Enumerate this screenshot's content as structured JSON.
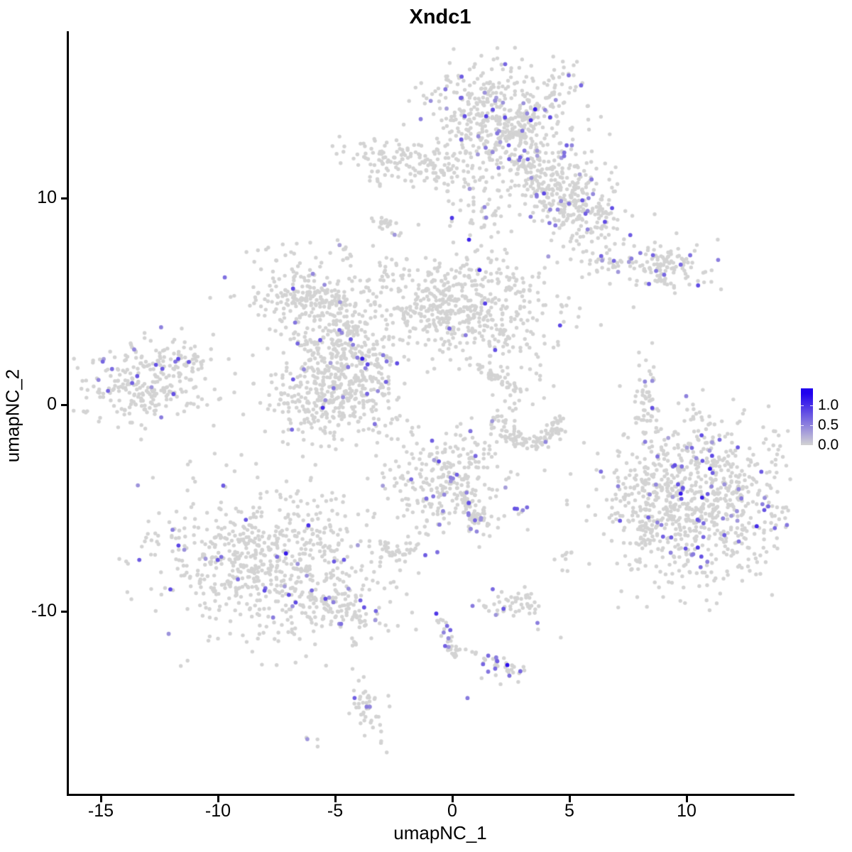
{
  "chart_data": {
    "type": "scatter",
    "title": "Xndc1",
    "xlabel": "umapNC_1",
    "ylabel": "umapNC_2",
    "x_ticks": [
      -15,
      -10,
      -5,
      0,
      5,
      10
    ],
    "y_ticks": [
      -10,
      0,
      10
    ],
    "xlim": [
      -16.4,
      14.5
    ],
    "ylim": [
      -18.9,
      18.0
    ],
    "grid": false,
    "point_base_color": "#d3d3d3",
    "expression_high_color": "#2000ee",
    "expression_vmax": 1.3,
    "seed": 12,
    "legend": {
      "position": "right",
      "tick_labels": [
        "1.0",
        "0.5",
        "0.0"
      ],
      "tick_values": [
        1.0,
        0.5,
        0.0
      ],
      "bar_value_top": 1.43,
      "low_color": "#d3d3d3",
      "high_color": "#2000ee"
    },
    "clusters": [
      {
        "name": "top-main",
        "type": "blob",
        "cx": 2.15,
        "cy": 14.2,
        "sx": 1.6,
        "sy": 1.3,
        "rot": 0,
        "n": 430,
        "frac": 0.075
      },
      {
        "name": "top-band",
        "type": "blob",
        "cx": 3.8,
        "cy": 11.4,
        "sx": 1.9,
        "sy": 0.85,
        "rot": -40,
        "n": 300,
        "frac": 0.075
      },
      {
        "name": "top-lower-lobe",
        "type": "blob",
        "cx": 5.2,
        "cy": 9.45,
        "sx": 1.0,
        "sy": 0.75,
        "rot": -20,
        "n": 150,
        "frac": 0.06
      },
      {
        "name": "top-sparse",
        "type": "blob",
        "cx": 0.95,
        "cy": 9.8,
        "sx": 0.8,
        "sy": 1.1,
        "rot": 0,
        "n": 55,
        "frac": 0.08
      },
      {
        "name": "upper-left-strip",
        "type": "blob",
        "cx": -1.4,
        "cy": 11.6,
        "sx": 1.5,
        "sy": 0.5,
        "rot": -8,
        "n": 165,
        "frac": 0.006
      },
      {
        "name": "comma",
        "type": "blob",
        "cx": -2.85,
        "cy": 8.75,
        "sx": 0.3,
        "sy": 0.18,
        "rot": -40,
        "n": 22,
        "frac": 0
      },
      {
        "name": "tiny-top",
        "type": "blob",
        "cx": -4.65,
        "cy": 7.5,
        "sx": 0.22,
        "sy": 0.3,
        "rot": 0,
        "n": 11,
        "frac": 0.1
      },
      {
        "name": "mid-left",
        "type": "blob",
        "cx": -6.6,
        "cy": 5.2,
        "sx": 1.2,
        "sy": 0.95,
        "rot": -15,
        "n": 210,
        "frac": 0.035
      },
      {
        "name": "mid-left-trail",
        "type": "blob",
        "cx": -5.0,
        "cy": 5.0,
        "sx": 0.7,
        "sy": 0.22,
        "rot": -10,
        "n": 28,
        "frac": 0.03
      },
      {
        "name": "center-left",
        "type": "blob",
        "cx": -4.75,
        "cy": 2.8,
        "sx": 1.15,
        "sy": 1.05,
        "rot": 0,
        "n": 240,
        "frac": 0.04
      },
      {
        "name": "center-lower-left",
        "type": "blob",
        "cx": -5.0,
        "cy": 0.4,
        "sx": 1.5,
        "sy": 1.05,
        "rot": 8,
        "n": 360,
        "frac": 0.03
      },
      {
        "name": "center-main",
        "type": "blob",
        "cx": 0.35,
        "cy": 4.75,
        "sx": 2.05,
        "sy": 1.25,
        "rot": -5,
        "n": 560,
        "frac": 0.012
      },
      {
        "name": "center-streak",
        "type": "line",
        "x1": 1.05,
        "y1": 1.9,
        "x2": 2.75,
        "y2": 0.7,
        "jitter": 0.1,
        "n": 40,
        "frac": 0
      },
      {
        "name": "far-left",
        "type": "blob",
        "cx": -13.1,
        "cy": 1.1,
        "sx": 1.5,
        "sy": 0.95,
        "rot": 8,
        "n": 270,
        "frac": 0.05
      },
      {
        "name": "far-left-tail",
        "type": "blob",
        "cx": -11.6,
        "cy": 2.2,
        "sx": 0.5,
        "sy": 0.3,
        "rot": -30,
        "n": 24,
        "frac": 0.09
      },
      {
        "name": "right-strip",
        "type": "blob",
        "cx": 8.2,
        "cy": 6.9,
        "sx": 1.6,
        "sy": 0.5,
        "rot": -5,
        "n": 150,
        "frac": 0.12
      },
      {
        "name": "right-strip-notch",
        "type": "blob",
        "cx": 8.95,
        "cy": 6.0,
        "sx": 0.4,
        "sy": 0.13,
        "rot": -35,
        "n": 12,
        "frac": 0
      },
      {
        "name": "right-column",
        "type": "blob",
        "cx": 8.3,
        "cy": 0.25,
        "sx": 0.28,
        "sy": 1.15,
        "rot": 0,
        "n": 50,
        "frac": 0.07
      },
      {
        "name": "crescent",
        "type": "arc",
        "cx": 3.3,
        "cy": -0.55,
        "rx": 1.3,
        "ry": 1.3,
        "a0": 180,
        "a1": 360,
        "thick": 0.16,
        "n": 115,
        "frac": 0.012
      },
      {
        "name": "crescent-top-dots",
        "type": "blob",
        "cx": 3.1,
        "cy": 1.0,
        "sx": 0.8,
        "sy": 0.55,
        "rot": 0,
        "n": 22,
        "frac": 0.04
      },
      {
        "name": "right-big",
        "type": "blob",
        "cx": 10.6,
        "cy": -4.55,
        "sx": 2.1,
        "sy": 2.05,
        "rot": 0,
        "n": 850,
        "frac": 0.062
      },
      {
        "name": "right-big-left-arm",
        "type": "blob",
        "cx": 8.35,
        "cy": -5.0,
        "sx": 0.6,
        "sy": 1.6,
        "rot": 0,
        "n": 80,
        "frac": 0.04
      },
      {
        "name": "center-bottom",
        "type": "blob",
        "cx": -0.15,
        "cy": -3.7,
        "sx": 1.3,
        "sy": 1.2,
        "rot": 0,
        "n": 290,
        "frac": 0.085
      },
      {
        "name": "center-bottom-arm",
        "type": "line",
        "x1": 0.4,
        "y1": -4.5,
        "x2": 1.45,
        "y2": -6.0,
        "jitter": 0.18,
        "n": 50,
        "frac": 0.12
      },
      {
        "name": "small-pair",
        "type": "blob",
        "cx": 2.75,
        "cy": -5.1,
        "sx": 0.28,
        "sy": 0.14,
        "rot": 0,
        "n": 5,
        "frac": 0.4
      },
      {
        "name": "small-left",
        "type": "blob",
        "cx": -2.3,
        "cy": -7.1,
        "sx": 0.55,
        "sy": 0.3,
        "rot": 0,
        "n": 38,
        "frac": 0.09
      },
      {
        "name": "bottom-left-main",
        "type": "blob",
        "cx": -7.85,
        "cy": -7.6,
        "sx": 2.35,
        "sy": 1.8,
        "rot": -10,
        "n": 720,
        "frac": 0.05
      },
      {
        "name": "bottom-left-tail",
        "type": "blob",
        "cx": -4.9,
        "cy": -9.9,
        "sx": 0.95,
        "sy": 0.45,
        "rot": -20,
        "n": 85,
        "frac": 0.13
      },
      {
        "name": "below-pair",
        "type": "blob",
        "cx": -4.15,
        "cy": -11.6,
        "sx": 0.2,
        "sy": 0.1,
        "rot": 0,
        "n": 3,
        "frac": 0
      },
      {
        "name": "bottom-mid",
        "type": "blob",
        "cx": 2.5,
        "cy": -9.7,
        "sx": 0.8,
        "sy": 0.4,
        "rot": 0,
        "n": 55,
        "frac": 0.09
      },
      {
        "name": "right-dots",
        "type": "blob",
        "cx": 4.95,
        "cy": -7.5,
        "sx": 0.3,
        "sy": 0.35,
        "rot": 0,
        "n": 8,
        "frac": 0
      },
      {
        "name": "bottom-streak",
        "type": "line",
        "x1": -0.55,
        "y1": -10.3,
        "x2": 0.05,
        "y2": -12.2,
        "jitter": 0.13,
        "n": 32,
        "frac": 0.12
      },
      {
        "name": "bottom-streak-side",
        "type": "blob",
        "cx": 0.7,
        "cy": -11.9,
        "sx": 0.3,
        "sy": 0.1,
        "rot": 0,
        "n": 6,
        "frac": 0.15
      },
      {
        "name": "bottom-small",
        "type": "blob",
        "cx": 2.2,
        "cy": -12.7,
        "sx": 0.5,
        "sy": 0.3,
        "rot": -15,
        "n": 38,
        "frac": 0.1
      },
      {
        "name": "bottom-column",
        "type": "blob",
        "cx": -3.55,
        "cy": -14.7,
        "sx": 0.33,
        "sy": 0.85,
        "rot": 10,
        "n": 48,
        "frac": 0.07
      },
      {
        "name": "tiny-bottom",
        "type": "blob",
        "cx": -6.05,
        "cy": -16.3,
        "sx": 0.22,
        "sy": 0.12,
        "rot": -30,
        "n": 4,
        "frac": 0.25
      }
    ],
    "extra_points": [
      {
        "x": -7.1,
        "y": -7.2,
        "v": 1.15
      },
      {
        "x": 11.0,
        "y": -3.1,
        "v": 1.2
      },
      {
        "x": 9.75,
        "y": -4.3,
        "v": 1.15
      },
      {
        "x": 2.35,
        "y": -12.6,
        "v": 1.2
      },
      {
        "x": 2.25,
        "y": 13.9,
        "v": 0.85
      },
      {
        "x": 1.4,
        "y": 4.9,
        "v": 0.9
      },
      {
        "x": -2.95,
        "y": 2.4,
        "v": 0.55
      },
      {
        "x": -2.8,
        "y": 2.1,
        "v": 0.6
      },
      {
        "x": 0.65,
        "y": -14.2,
        "v": 0.55
      },
      {
        "x": 2.25,
        "y": 3.0,
        "v": 0
      },
      {
        "x": 3.75,
        "y": 1.4,
        "v": 0
      },
      {
        "x": 4.1,
        "y": -2.05,
        "v": 0
      },
      {
        "x": 1.9,
        "y": -1.8,
        "v": 0
      },
      {
        "x": 2.95,
        "y": 1.8,
        "v": 0
      },
      {
        "x": 5.65,
        "y": 12.2,
        "v": 0
      },
      {
        "x": -4.4,
        "y": 6.1,
        "v": 0
      }
    ]
  }
}
